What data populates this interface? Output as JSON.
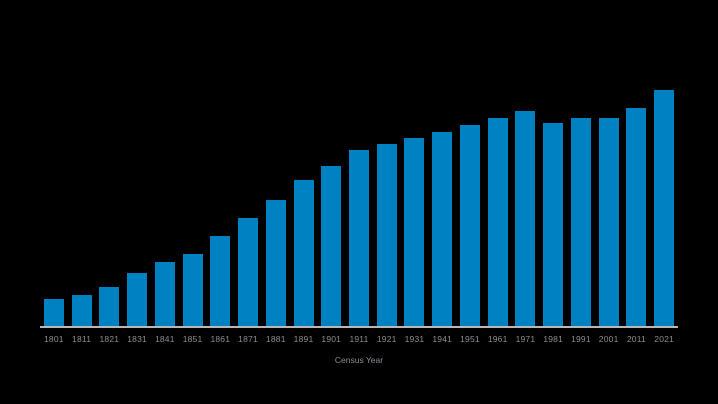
{
  "chart_data": {
    "type": "bar",
    "title": "",
    "xlabel": "Census Year",
    "ylabel": "",
    "y_axis_visible": false,
    "grid": false,
    "legend": null,
    "value_note": "No y-axis shown; values are relative bar heights (px above baseline, max = 236)",
    "categories": [
      "1801",
      "1811",
      "1821",
      "1831",
      "1841",
      "1851",
      "1861",
      "1871",
      "1881",
      "1891",
      "1901",
      "1911",
      "1921",
      "1931",
      "1941",
      "1951",
      "1961",
      "1971",
      "1981",
      "1991",
      "2001",
      "2011",
      "2021"
    ],
    "values": [
      27,
      31,
      39,
      53,
      64,
      72,
      90,
      108,
      126,
      146,
      160,
      176,
      182,
      188,
      194,
      201,
      208,
      215,
      203,
      208,
      208,
      218,
      236
    ],
    "ylim": [
      0,
      236
    ]
  },
  "colors": {
    "background": "#000000",
    "bar": "#0081C2",
    "baseline": "#B8B8BC",
    "label": "#8A8D96"
  }
}
